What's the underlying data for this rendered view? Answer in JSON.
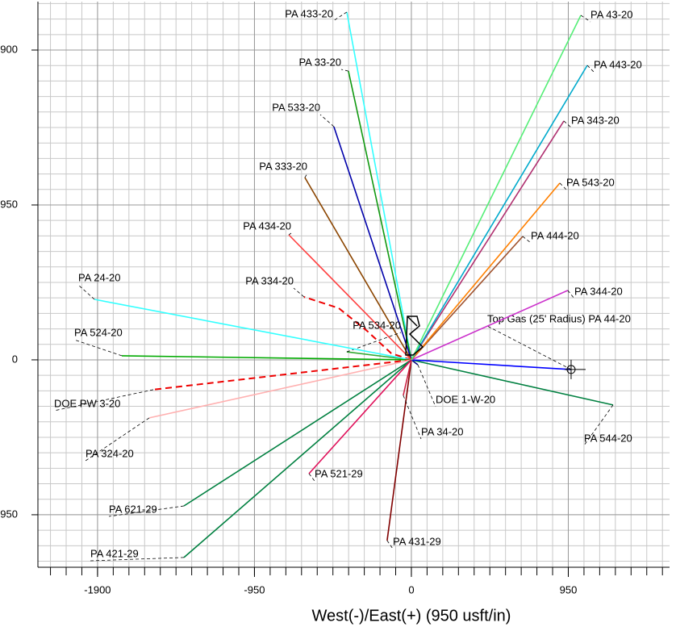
{
  "chart_data": {
    "type": "line",
    "xlabel": "West(-)/East(+) (950 usft/in)",
    "xlim": [
      -2261,
      1563
    ],
    "ylim": [
      -1272,
      2197
    ],
    "xticks": [
      -1900,
      -950,
      0,
      950
    ],
    "yticks": [
      1900,
      950,
      0,
      -950
    ],
    "grid": true,
    "minor_divisions": 10,
    "series": [
      {
        "name": "PA 433-20",
        "color": "#33ffff",
        "x": [
          0,
          -391
        ],
        "y": [
          0,
          2133
        ]
      },
      {
        "name": "PA 33-20",
        "color": "#119911",
        "x": [
          0,
          -381
        ],
        "y": [
          0,
          1771
        ]
      },
      {
        "name": "PA 533-20",
        "color": "#0000aa",
        "x": [
          0,
          -469
        ],
        "y": [
          0,
          1430
        ]
      },
      {
        "name": "PA 333-20",
        "color": "#8b4500",
        "x": [
          0,
          -645
        ],
        "y": [
          0,
          1118
        ]
      },
      {
        "name": "PA 434-20",
        "color": "#ff4040",
        "x": [
          0,
          -742
        ],
        "y": [
          0,
          767
        ]
      },
      {
        "name": "PA 334-20",
        "color": "#ee0000",
        "dashed": true,
        "x": [
          0,
          -122,
          -269,
          -440,
          -650
        ],
        "y": [
          0,
          40,
          178,
          317,
          386
        ]
      },
      {
        "name": "PA 534-20",
        "color": "#33aa33",
        "x": [
          0,
          -391
        ],
        "y": [
          0,
          49
        ]
      },
      {
        "name": "PA 24-20",
        "color": "#33ffff",
        "x": [
          0,
          -1919
        ],
        "y": [
          0,
          371
        ]
      },
      {
        "name": "PA 524-20",
        "color": "#00aa00",
        "x": [
          0,
          -1753
        ],
        "y": [
          0,
          25
        ]
      },
      {
        "name": "DOE PW 3-20",
        "color": "#ee0000",
        "dashed": true,
        "x": [
          0,
          -1563
        ],
        "y": [
          0,
          -183
        ]
      },
      {
        "name": "PA 324-20",
        "color": "#ffb0b0",
        "x": [
          0,
          -1587
        ],
        "y": [
          0,
          -356
        ]
      },
      {
        "name": "PA 621-29",
        "color": "#008040",
        "x": [
          0,
          -1377
        ],
        "y": [
          0,
          -896
        ]
      },
      {
        "name": "PA 421-29",
        "color": "#008040",
        "x": [
          0,
          -1377
        ],
        "y": [
          0,
          -1212
        ]
      },
      {
        "name": "PA 521-29",
        "color": "#e0105a",
        "x": [
          0,
          -620
        ],
        "y": [
          0,
          -698
        ]
      },
      {
        "name": "PA 431-29",
        "color": "#800000",
        "x": [
          0,
          -147
        ],
        "y": [
          0,
          -1108
        ]
      },
      {
        "name": "PA 34-20",
        "color": "#cc2244",
        "x": [
          0,
          -49
        ],
        "y": [
          0,
          -218
        ]
      },
      {
        "name": "DOE 1-W-20",
        "color": "#000080",
        "x": [
          0,
          39
        ],
        "y": [
          0,
          -30
        ]
      },
      {
        "name": "PA 544-20",
        "color": "#008040",
        "x": [
          0,
          1221
        ],
        "y": [
          0,
          -277
        ]
      },
      {
        "name": "Top Gas (25' Radius) PA 44-20",
        "color": "#0000ff",
        "x": [
          0,
          967
        ],
        "y": [
          0,
          -59
        ]
      },
      {
        "name": "PA 344-20",
        "color": "#cc33cc",
        "x": [
          0,
          947
        ],
        "y": [
          0,
          426
        ]
      },
      {
        "name": "PA 444-20",
        "color": "#a0522d",
        "x": [
          0,
          674
        ],
        "y": [
          0,
          757
        ]
      },
      {
        "name": "PA 543-20",
        "color": "#ff8000",
        "x": [
          0,
          899
        ],
        "y": [
          0,
          1084
        ]
      },
      {
        "name": "PA 343-20",
        "color": "#b03070",
        "x": [
          0,
          923
        ],
        "y": [
          0,
          1465
        ]
      },
      {
        "name": "PA 443-20",
        "color": "#00aacc",
        "x": [
          0,
          1065
        ],
        "y": [
          0,
          1806
        ]
      },
      {
        "name": "PA 43-20",
        "color": "#55ee77",
        "x": [
          0,
          1026
        ],
        "y": [
          0,
          2113
        ]
      }
    ]
  }
}
